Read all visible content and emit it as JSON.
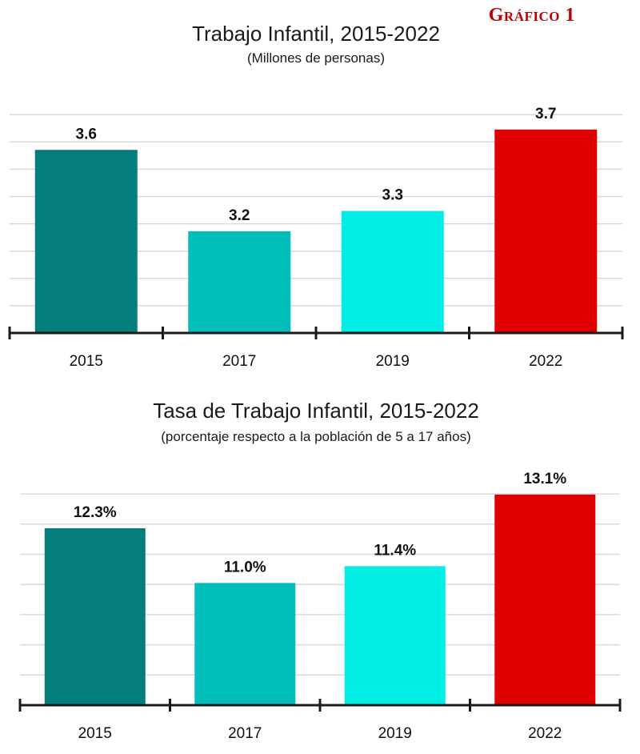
{
  "badge": "Gráfico 1",
  "colors": {
    "bar_2015": "#037e7c",
    "bar_2017": "#00bfba",
    "bar_2019": "#00eee6",
    "bar_2022": "#e00000",
    "gridline": "#d9d9d9",
    "axis": "#1a1a1a"
  },
  "chart_data": [
    {
      "type": "bar",
      "title": "Trabajo Infantil, 2015-2022",
      "subtitle": "(Millones de personas)",
      "categories": [
        "2015",
        "2017",
        "2019",
        "2022"
      ],
      "values": [
        3.6,
        3.2,
        3.3,
        3.7
      ],
      "data_labels": [
        "3.6",
        "3.2",
        "3.3",
        "3.7"
      ],
      "ylim": [
        2.7,
        3.9
      ],
      "gridlines": true,
      "y_tick_labels": false
    },
    {
      "type": "bar",
      "title": "Tasa de Trabajo Infantil, 2015-2022",
      "subtitle": "(porcentaje respecto a la población de 5 a 17 años)",
      "categories": [
        "2015",
        "2017",
        "2019",
        "2022"
      ],
      "values": [
        12.3,
        11.0,
        11.4,
        13.1
      ],
      "data_labels": [
        "12.3%",
        "11.0%",
        "11.4%",
        "13.1%"
      ],
      "ylim": [
        8.1,
        13.8
      ],
      "gridlines": true,
      "y_tick_labels": false
    }
  ]
}
